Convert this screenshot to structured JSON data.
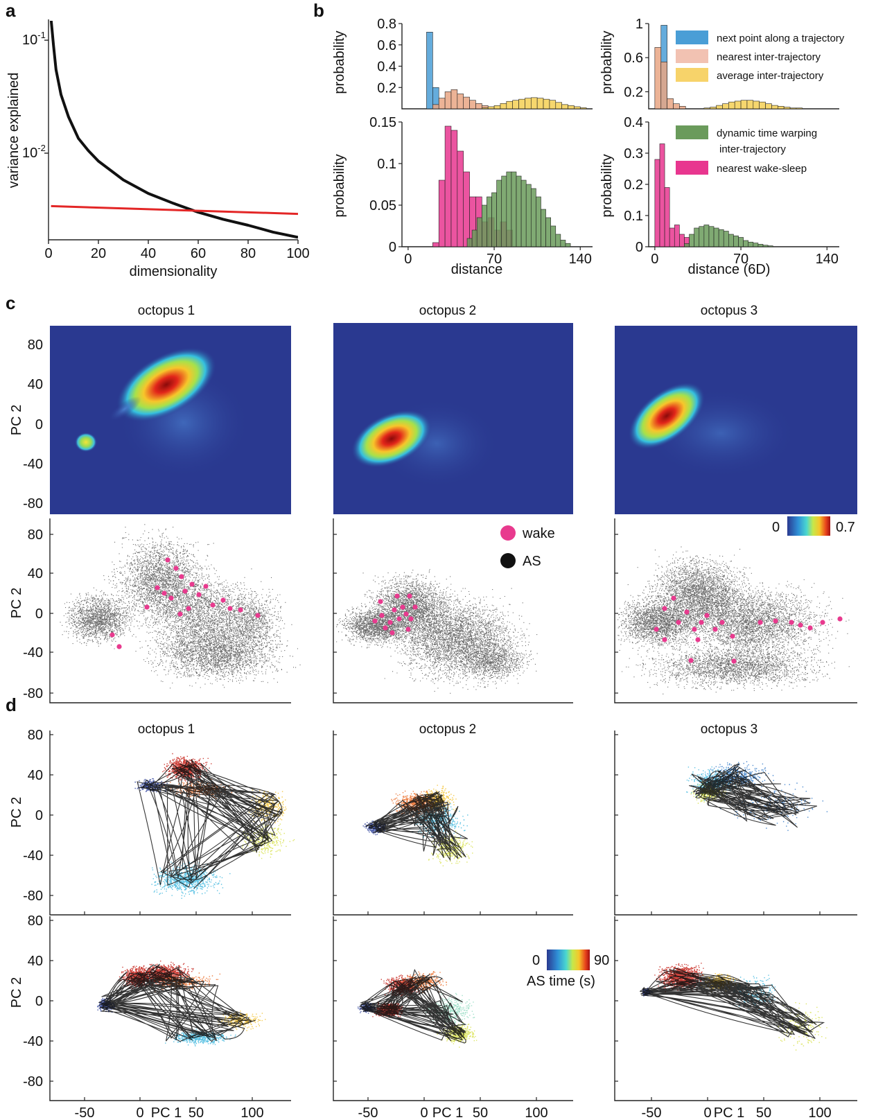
{
  "panel_labels": {
    "a": "a",
    "b": "b",
    "c": "c",
    "d": "d"
  },
  "titles": [
    "octopus 1",
    "octopus 2",
    "octopus 3"
  ],
  "axis_labels": {
    "pc1": "PC 1",
    "pc2": "PC 2",
    "probability": "probability",
    "distance": "distance",
    "distance6d": "distance (6D)",
    "dimensionality": "dimensionality",
    "variance": "variance explained"
  },
  "legend_b": [
    {
      "label": "next point along a trajectory",
      "color": "#4a9ed6"
    },
    {
      "label": "nearest inter-trajectory",
      "color": "#f2b8a8"
    },
    {
      "label": "average inter-trajectory",
      "color": "#f5d055"
    }
  ],
  "legend_b2": [
    {
      "label": "dynamic time warping",
      "label2": "inter-trajectory",
      "color": "#6a9b5b"
    },
    {
      "label": "nearest wake-sleep",
      "color": "#e8368f"
    }
  ],
  "legend_c": {
    "wake": "wake",
    "as": "AS"
  },
  "colorbar_c": {
    "min": "0",
    "max": "0.7"
  },
  "colorbar_d": {
    "min": "0",
    "max": "90",
    "label": "AS time (s)"
  },
  "colors": {
    "black": "#111111",
    "red": "#e32626",
    "pink": "#e83a8e",
    "heat_bg": "#2a3990",
    "scatter": "#444444"
  },
  "chart_data": [
    {
      "panel": "a",
      "type": "line",
      "xlabel": "dimensionality",
      "ylabel": "variance explained",
      "xlim": [
        0,
        100
      ],
      "ylog": true,
      "xticks": [
        "0",
        "20",
        "40",
        "60",
        "80",
        "100"
      ],
      "yticks": [
        {
          "base": "10",
          "exp": "-1"
        },
        {
          "base": "10",
          "exp": "-2"
        }
      ],
      "series": [
        {
          "color": "#111111",
          "x": [
            1,
            2,
            3,
            5,
            8,
            12,
            16,
            20,
            30,
            40,
            50,
            60,
            70,
            80,
            90,
            100
          ],
          "y": [
            0.155,
            0.09,
            0.055,
            0.033,
            0.021,
            0.0135,
            0.0105,
            0.0085,
            0.0058,
            0.0044,
            0.0036,
            0.003,
            0.0026,
            0.0023,
            0.002,
            0.0018
          ]
        },
        {
          "color": "#e32626",
          "x": [
            1,
            100
          ],
          "y": [
            0.0034,
            0.0029
          ]
        }
      ]
    },
    {
      "panel": "b-top-left",
      "type": "bar",
      "xlim": [
        -5,
        150
      ],
      "ylim": [
        0,
        0.8
      ],
      "yticks": [
        "0.2",
        "0.4",
        "0.6",
        "0.8"
      ],
      "ylabel": "probability",
      "series": [
        {
          "color": "#4a9ed6",
          "bin_width": 5,
          "start": 15,
          "values": [
            0.72,
            0.2
          ]
        },
        {
          "color": "#e9a684",
          "bin_width": 5,
          "start": 20,
          "values": [
            0.04,
            0.1,
            0.16,
            0.18,
            0.14,
            0.11,
            0.08,
            0.05,
            0.03
          ]
        },
        {
          "color": "#f5d055",
          "bin_width": 5,
          "start": 60,
          "values": [
            0.01,
            0.02,
            0.03,
            0.05,
            0.07,
            0.08,
            0.09,
            0.1,
            0.105,
            0.1,
            0.09,
            0.08,
            0.06,
            0.04,
            0.03,
            0.02,
            0.01
          ]
        }
      ]
    },
    {
      "panel": "b-top-right",
      "type": "bar",
      "xlim": [
        -5,
        150
      ],
      "ylim": [
        0,
        1
      ],
      "yticks": [
        "0.2",
        "0.6",
        "1"
      ],
      "ylabel": "probability",
      "series": [
        {
          "color": "#4a9ed6",
          "bin_width": 5,
          "start": 5,
          "values": [
            0.98
          ]
        },
        {
          "color": "#e9a684",
          "bin_width": 5,
          "start": 0,
          "values": [
            0.72,
            0.55,
            0.12,
            0.06,
            0.03
          ]
        },
        {
          "color": "#f5d055",
          "bin_width": 5,
          "start": 40,
          "values": [
            0.01,
            0.02,
            0.04,
            0.06,
            0.08,
            0.09,
            0.1,
            0.1,
            0.09,
            0.08,
            0.06,
            0.04,
            0.03,
            0.02,
            0.01,
            0.01
          ]
        }
      ]
    },
    {
      "panel": "b-bottom-left",
      "type": "bar",
      "xlabel": "distance",
      "xlim": [
        -5,
        150
      ],
      "ylim": [
        0,
        0.15
      ],
      "xticks": [
        "0",
        "70",
        "140"
      ],
      "yticks": [
        "0",
        "0.05",
        "0.1",
        "0.15"
      ],
      "ylabel": "probability",
      "series": [
        {
          "color": "#e8368f",
          "bin_width": 5,
          "start": 20,
          "values": [
            0.005,
            0.08,
            0.145,
            0.14,
            0.115,
            0.09,
            0.06,
            0.06,
            0.03,
            0.035,
            0.02,
            0.03,
            0.02
          ]
        },
        {
          "color": "#6a9b5b",
          "bin_width": 4,
          "start": 48,
          "values": [
            0.01,
            0.02,
            0.035,
            0.05,
            0.06,
            0.065,
            0.08,
            0.085,
            0.09,
            0.09,
            0.085,
            0.08,
            0.075,
            0.07,
            0.06,
            0.045,
            0.035,
            0.025,
            0.015,
            0.008,
            0.004
          ]
        }
      ]
    },
    {
      "panel": "b-bottom-right",
      "type": "bar",
      "xlabel": "distance (6D)",
      "xlim": [
        -5,
        150
      ],
      "ylim": [
        0,
        0.4
      ],
      "xticks": [
        "0",
        "70",
        "140"
      ],
      "yticks": [
        "0",
        "0.1",
        "0.2",
        "0.3",
        "0.4"
      ],
      "ylabel": "probability",
      "series": [
        {
          "color": "#e8368f",
          "bin_width": 4,
          "start": 0,
          "values": [
            0.28,
            0.33,
            0.19,
            0.06,
            0.07,
            0.04,
            0.03
          ]
        },
        {
          "color": "#6a9b5b",
          "bin_width": 4,
          "start": 24,
          "values": [
            0.01,
            0.04,
            0.06,
            0.065,
            0.07,
            0.065,
            0.06,
            0.055,
            0.05,
            0.04,
            0.035,
            0.03,
            0.02,
            0.015,
            0.012,
            0.008,
            0.005,
            0.003
          ]
        }
      ]
    },
    {
      "panel": "c",
      "type": "heatmap",
      "xlim": [
        -80,
        130
      ],
      "ylim": [
        -90,
        100
      ],
      "yticks": [
        "80",
        "40",
        "0",
        "-40",
        "-80"
      ],
      "peaks": [
        [
          {
            "x": 10,
            "y": 40,
            "v": 0.7
          },
          {
            "x": -50,
            "y": -22,
            "v": 0.4
          }
        ],
        [
          {
            "x": -40,
            "y": -20,
            "v": 0.7
          }
        ],
        [
          {
            "x": -35,
            "y": 10,
            "v": 0.7
          }
        ]
      ]
    },
    {
      "panel": "d",
      "type": "scatter",
      "xlim": [
        -80,
        130
      ],
      "ylim": [
        -90,
        90
      ],
      "xticks": [
        "-50",
        "0",
        "50",
        "100"
      ],
      "yticks": [
        "80",
        "40",
        "0",
        "-40",
        "-80"
      ]
    }
  ]
}
